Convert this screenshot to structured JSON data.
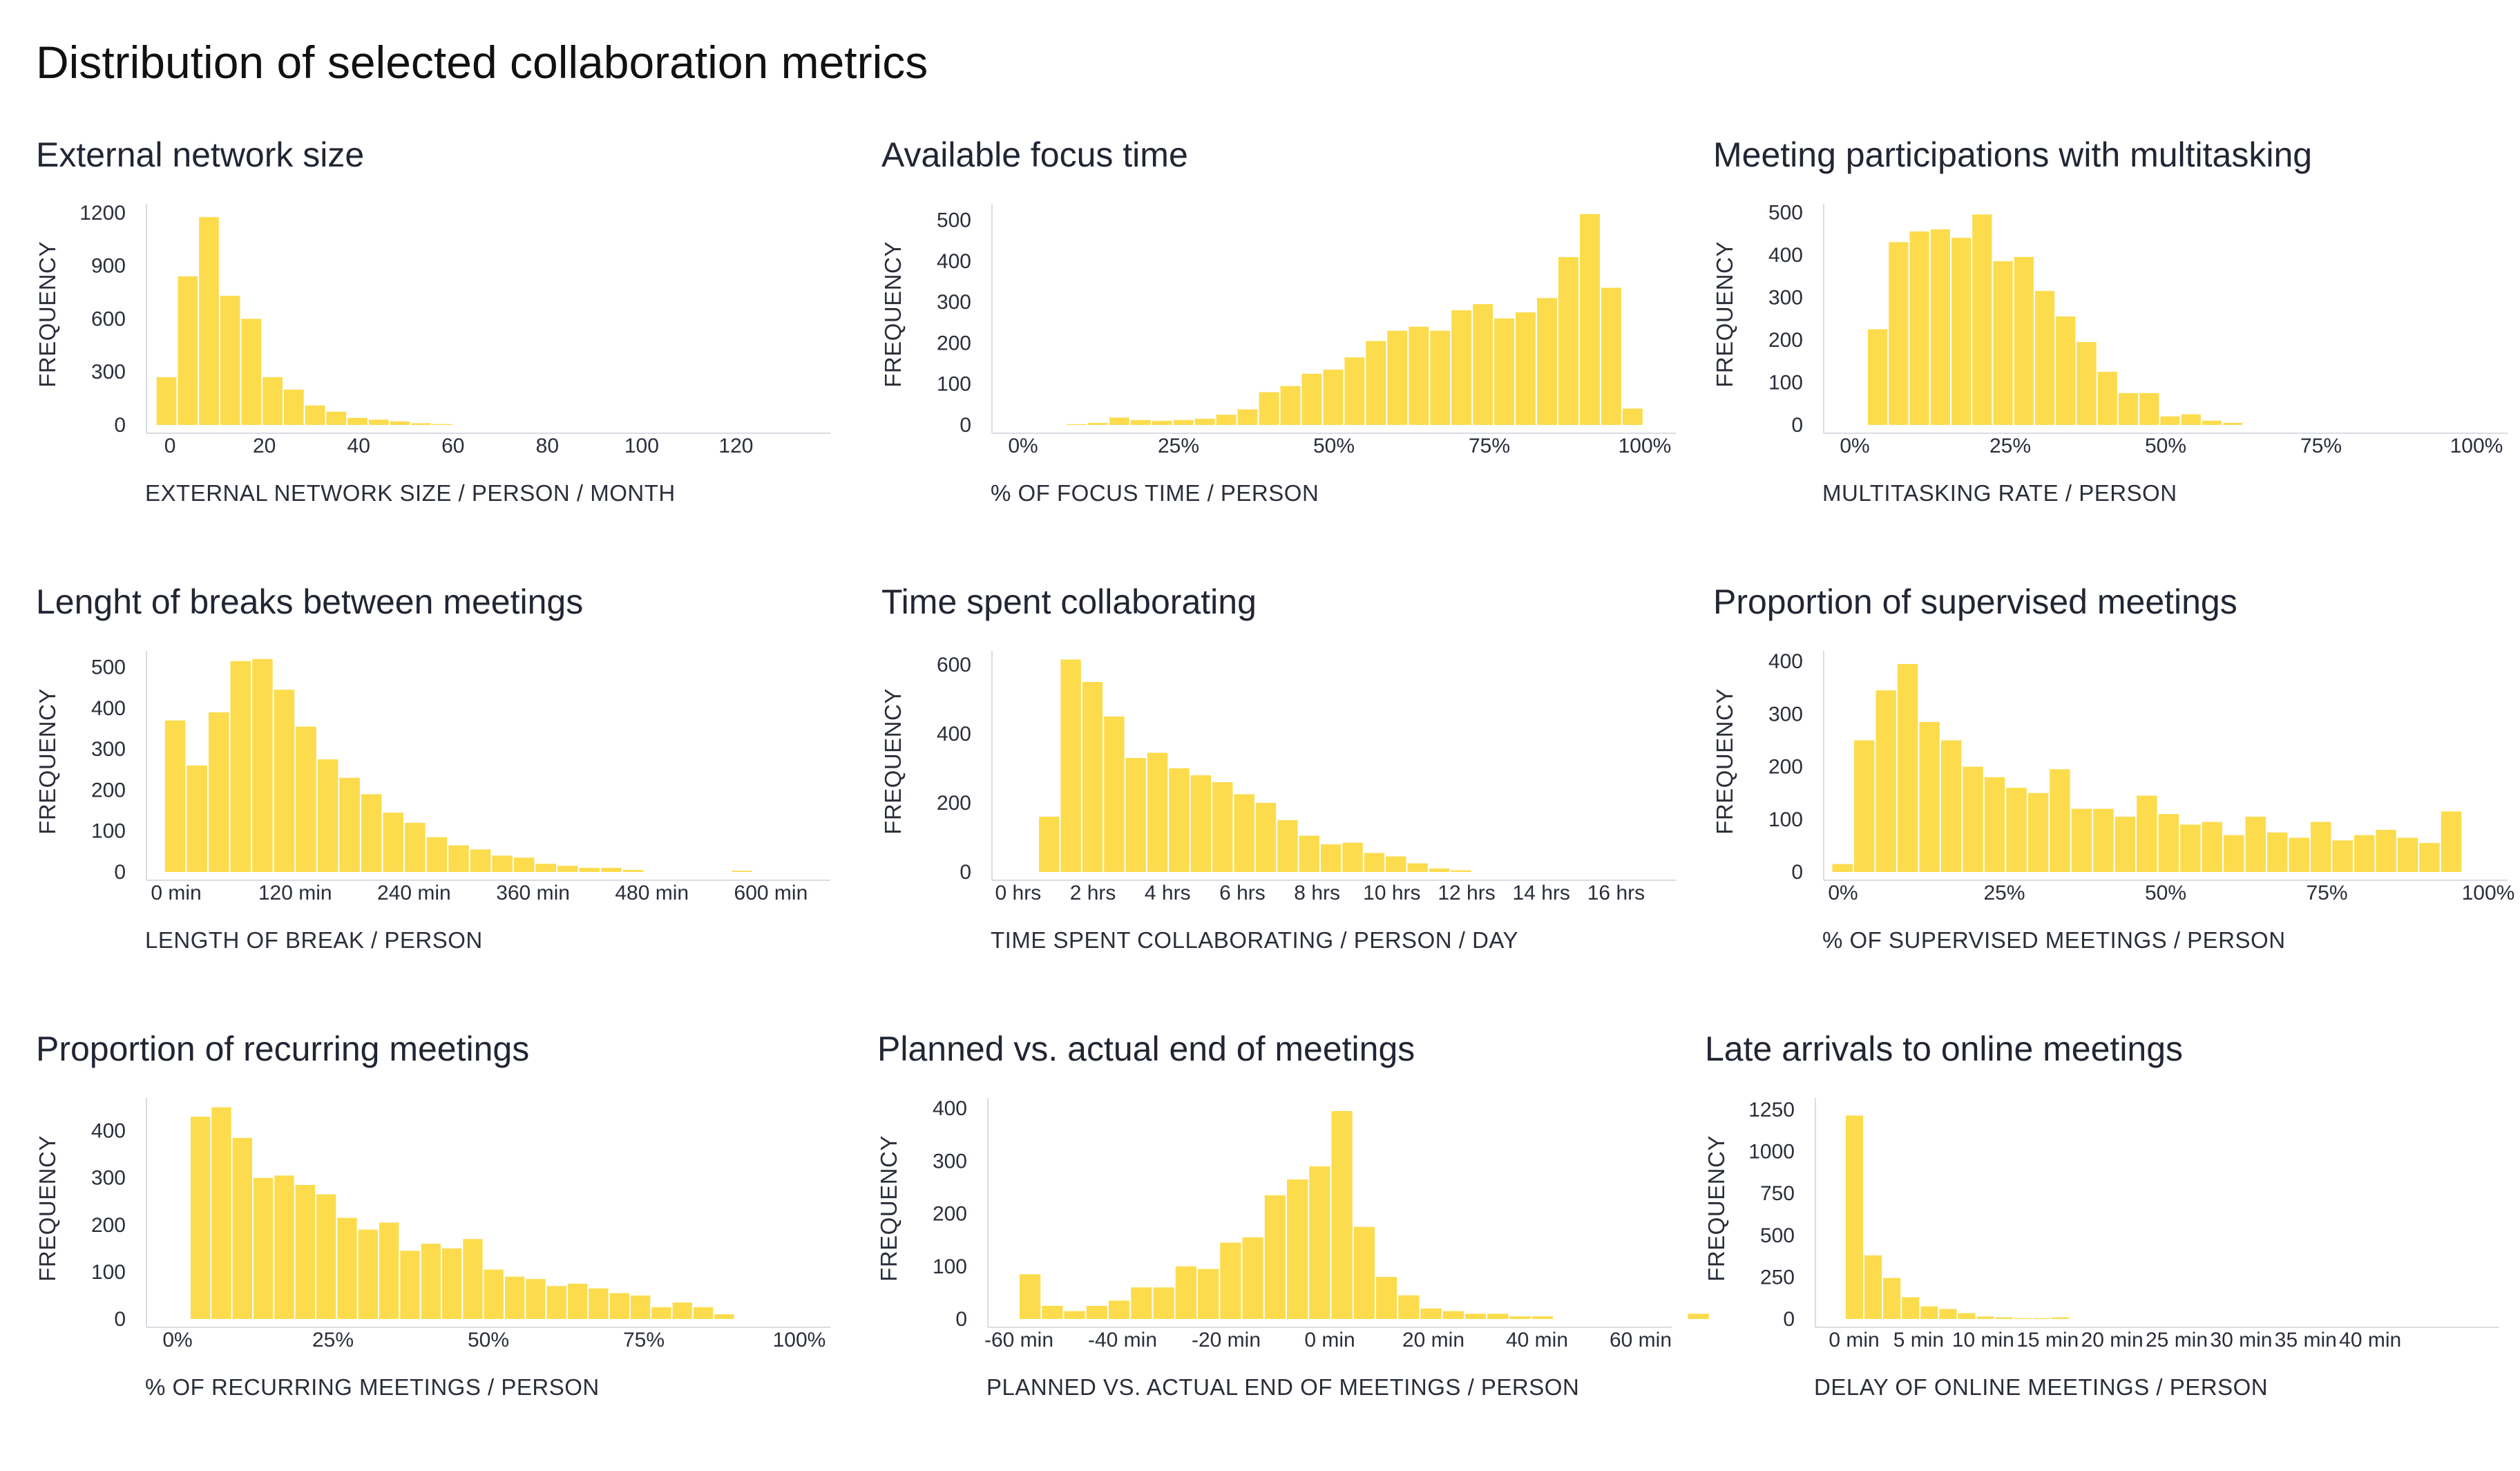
{
  "title": "Distribution of selected collaboration metrics",
  "colors": {
    "bar": "#FCDC4D",
    "axis": "#D9DCE3",
    "text": "#2a2e3a"
  },
  "chart_data": [
    {
      "type": "bar",
      "title": "External network size",
      "xlabel": "EXTERNAL NETWORK SIZE / PERSON / MONTH",
      "ylabel": "FREQUENCY",
      "xlim": [
        -5,
        140
      ],
      "ylim": [
        0,
        1250
      ],
      "bin_width": 4.5,
      "bin_start": -3,
      "values": [
        270,
        840,
        1175,
        730,
        600,
        270,
        200,
        110,
        75,
        40,
        30,
        20,
        10,
        5
      ],
      "x_ticks": [
        0,
        20,
        40,
        60,
        80,
        100,
        120
      ],
      "x_tick_labels": [
        "0",
        "20",
        "40",
        "60",
        "80",
        "100",
        "120"
      ],
      "y_ticks": [
        0,
        300,
        600,
        900,
        1200
      ],
      "y_tick_labels": [
        "0",
        "300",
        "600",
        "900",
        "1200"
      ]
    },
    {
      "type": "bar",
      "title": "Available focus time",
      "xlabel": "% OF FOCUS TIME / PERSON",
      "ylabel": "FREQUENCY",
      "xlim": [
        -0.05,
        1.05
      ],
      "ylim": [
        0,
        540
      ],
      "bin_width": 0.0344,
      "bin_start": 0.0,
      "values": [
        0,
        0,
        2,
        5,
        18,
        12,
        10,
        12,
        15,
        25,
        38,
        80,
        95,
        125,
        135,
        165,
        205,
        230,
        240,
        230,
        280,
        295,
        260,
        275,
        310,
        410,
        515,
        335,
        40
      ],
      "x_ticks": [
        0,
        0.25,
        0.5,
        0.75,
        1
      ],
      "x_tick_labels": [
        "0%",
        "25%",
        "50%",
        "75%",
        "100%"
      ],
      "y_ticks": [
        0,
        100,
        200,
        300,
        400,
        500
      ],
      "y_tick_labels": [
        "0",
        "100",
        "200",
        "300",
        "400",
        "500"
      ]
    },
    {
      "type": "bar",
      "title": "Meeting participations with multitasking",
      "xlabel": "MULTITASKING RATE / PERSON",
      "ylabel": "FREQUENCY",
      "xlim": [
        -0.05,
        1.05
      ],
      "ylim": [
        0,
        520
      ],
      "bin_width": 0.0336,
      "bin_start": 0.02,
      "values": [
        225,
        430,
        455,
        460,
        440,
        495,
        385,
        395,
        315,
        255,
        195,
        125,
        75,
        75,
        20,
        25,
        10,
        5,
        0
      ],
      "x_ticks": [
        0,
        0.25,
        0.5,
        0.75,
        1
      ],
      "x_tick_labels": [
        "0%",
        "25%",
        "50%",
        "75%",
        "100%"
      ],
      "y_ticks": [
        0,
        100,
        200,
        300,
        400,
        500
      ],
      "y_tick_labels": [
        "0",
        "100",
        "200",
        "300",
        "400",
        "500"
      ]
    },
    {
      "type": "bar",
      "title": "Lenght of breaks between meetings",
      "xlabel": "LENGTH OF BREAK / PERSON",
      "ylabel": "FREQUENCY",
      "xlim": [
        -30,
        660
      ],
      "ylim": [
        0,
        540
      ],
      "bin_width": 22,
      "bin_start": -12,
      "values": [
        370,
        260,
        390,
        515,
        520,
        445,
        355,
        275,
        230,
        190,
        145,
        120,
        85,
        65,
        55,
        40,
        35,
        20,
        15,
        10,
        10,
        5,
        0,
        0,
        0,
        0,
        3
      ],
      "x_ticks": [
        0,
        120,
        240,
        360,
        480,
        600
      ],
      "x_tick_labels": [
        "0 min",
        "120 min",
        "240 min",
        "360 min",
        "480 min",
        "600 min"
      ],
      "y_ticks": [
        0,
        100,
        200,
        300,
        400,
        500
      ],
      "y_tick_labels": [
        "0",
        "100",
        "200",
        "300",
        "400",
        "500"
      ]
    },
    {
      "type": "bar",
      "title": "Time spent collaborating",
      "xlabel": "TIME SPENT COLLABORATING / PERSON / DAY",
      "ylabel": "FREQUENCY",
      "xlim": [
        -0.7,
        17.6
      ],
      "ylim": [
        0,
        640
      ],
      "bin_width": 0.58,
      "bin_start": 0.54,
      "values": [
        160,
        615,
        550,
        450,
        330,
        345,
        300,
        280,
        260,
        225,
        200,
        150,
        105,
        80,
        85,
        55,
        45,
        25,
        10,
        5
      ],
      "x_ticks": [
        0,
        2,
        4,
        6,
        8,
        10,
        12,
        14,
        16
      ],
      "x_tick_labels": [
        "0 hrs",
        "2 hrs",
        "4 hrs",
        "6 hrs",
        "8 hrs",
        "10 hrs",
        "12 hrs",
        "14 hrs",
        "16 hrs"
      ],
      "y_ticks": [
        0,
        200,
        400,
        600
      ],
      "y_tick_labels": [
        "0",
        "200",
        "400",
        "600"
      ]
    },
    {
      "type": "bar",
      "title": "Proportion of supervised meetings",
      "xlabel": "% OF SUPERVISED MEETINGS / PERSON",
      "ylabel": "FREQUENCY",
      "xlim": [
        -0.03,
        1.03
      ],
      "ylim": [
        0,
        420
      ],
      "bin_width": 0.0337,
      "bin_start": -0.0177,
      "values": [
        15,
        250,
        345,
        395,
        285,
        250,
        200,
        180,
        160,
        150,
        195,
        120,
        120,
        105,
        145,
        110,
        90,
        95,
        70,
        105,
        75,
        65,
        95,
        60,
        70,
        80,
        65,
        55,
        115
      ],
      "x_ticks": [
        0,
        0.25,
        0.5,
        0.75,
        1
      ],
      "x_tick_labels": [
        "0%",
        "25%",
        "50%",
        "75%",
        "100%"
      ],
      "y_ticks": [
        0,
        100,
        200,
        300,
        400
      ],
      "y_tick_labels": [
        "0",
        "100",
        "200",
        "300",
        "400"
      ]
    },
    {
      "type": "bar",
      "title": "Proportion of recurring meetings",
      "xlabel": "% OF RECURRING MEETINGS / PERSON",
      "ylabel": "FREQUENCY",
      "xlim": [
        -0.05,
        1.05
      ],
      "ylim": [
        0,
        470
      ],
      "bin_width": 0.0337,
      "bin_start": 0.02,
      "values": [
        430,
        450,
        385,
        300,
        305,
        285,
        265,
        215,
        190,
        205,
        145,
        160,
        150,
        170,
        105,
        90,
        85,
        70,
        75,
        65,
        55,
        50,
        25,
        35,
        25,
        10
      ],
      "x_ticks": [
        0,
        0.25,
        0.5,
        0.75,
        1
      ],
      "x_tick_labels": [
        "0%",
        "25%",
        "50%",
        "75%",
        "100%"
      ],
      "y_ticks": [
        0,
        100,
        200,
        300,
        400
      ],
      "y_tick_labels": [
        "0",
        "100",
        "200",
        "300",
        "400"
      ]
    },
    {
      "type": "bar",
      "title": "Planned vs. actual end of meetings",
      "xlabel": "PLANNED VS. ACTUAL END OF MEETINGS / PERSON",
      "ylabel": "FREQUENCY",
      "xlim": [
        -66,
        66
      ],
      "ylim": [
        0,
        420
      ],
      "bin_width": 4.3,
      "bin_start": -60,
      "values": [
        85,
        25,
        15,
        25,
        35,
        60,
        60,
        100,
        95,
        145,
        155,
        235,
        265,
        290,
        395,
        175,
        80,
        45,
        20,
        15,
        10,
        10,
        5,
        5,
        0,
        0,
        0,
        0,
        0,
        0,
        10
      ],
      "x_ticks": [
        -60,
        -40,
        -20,
        0,
        20,
        40,
        60
      ],
      "x_tick_labels": [
        "-60 min",
        "-40 min",
        "-20 min",
        "0 min",
        "20 min",
        "40 min",
        "60 min"
      ],
      "y_ticks": [
        0,
        100,
        200,
        300,
        400
      ],
      "y_tick_labels": [
        "0",
        "100",
        "200",
        "300",
        "400"
      ]
    },
    {
      "type": "bar",
      "title": "Late arrivals to online meetings",
      "xlabel": "DELAY OF ONLINE MEETINGS / PERSON",
      "ylabel": "FREQUENCY",
      "xlim": [
        -3,
        50
      ],
      "ylim": [
        0,
        1320
      ],
      "bin_width": 1.45,
      "bin_start": -0.7,
      "values": [
        1215,
        380,
        245,
        130,
        75,
        60,
        35,
        15,
        10,
        5,
        5,
        10,
        0
      ],
      "x_ticks": [
        0,
        5,
        10,
        15,
        20,
        25,
        30,
        35,
        40
      ],
      "x_tick_labels": [
        "0 min",
        "5 min",
        "10 min",
        "15 min",
        "20 min",
        "25 min",
        "30 min",
        "35 min",
        "40 min"
      ],
      "y_ticks": [
        0,
        250,
        500,
        750,
        1000,
        1250
      ],
      "y_tick_labels": [
        "0",
        "250",
        "500",
        "750",
        "1000",
        "1250"
      ]
    }
  ]
}
